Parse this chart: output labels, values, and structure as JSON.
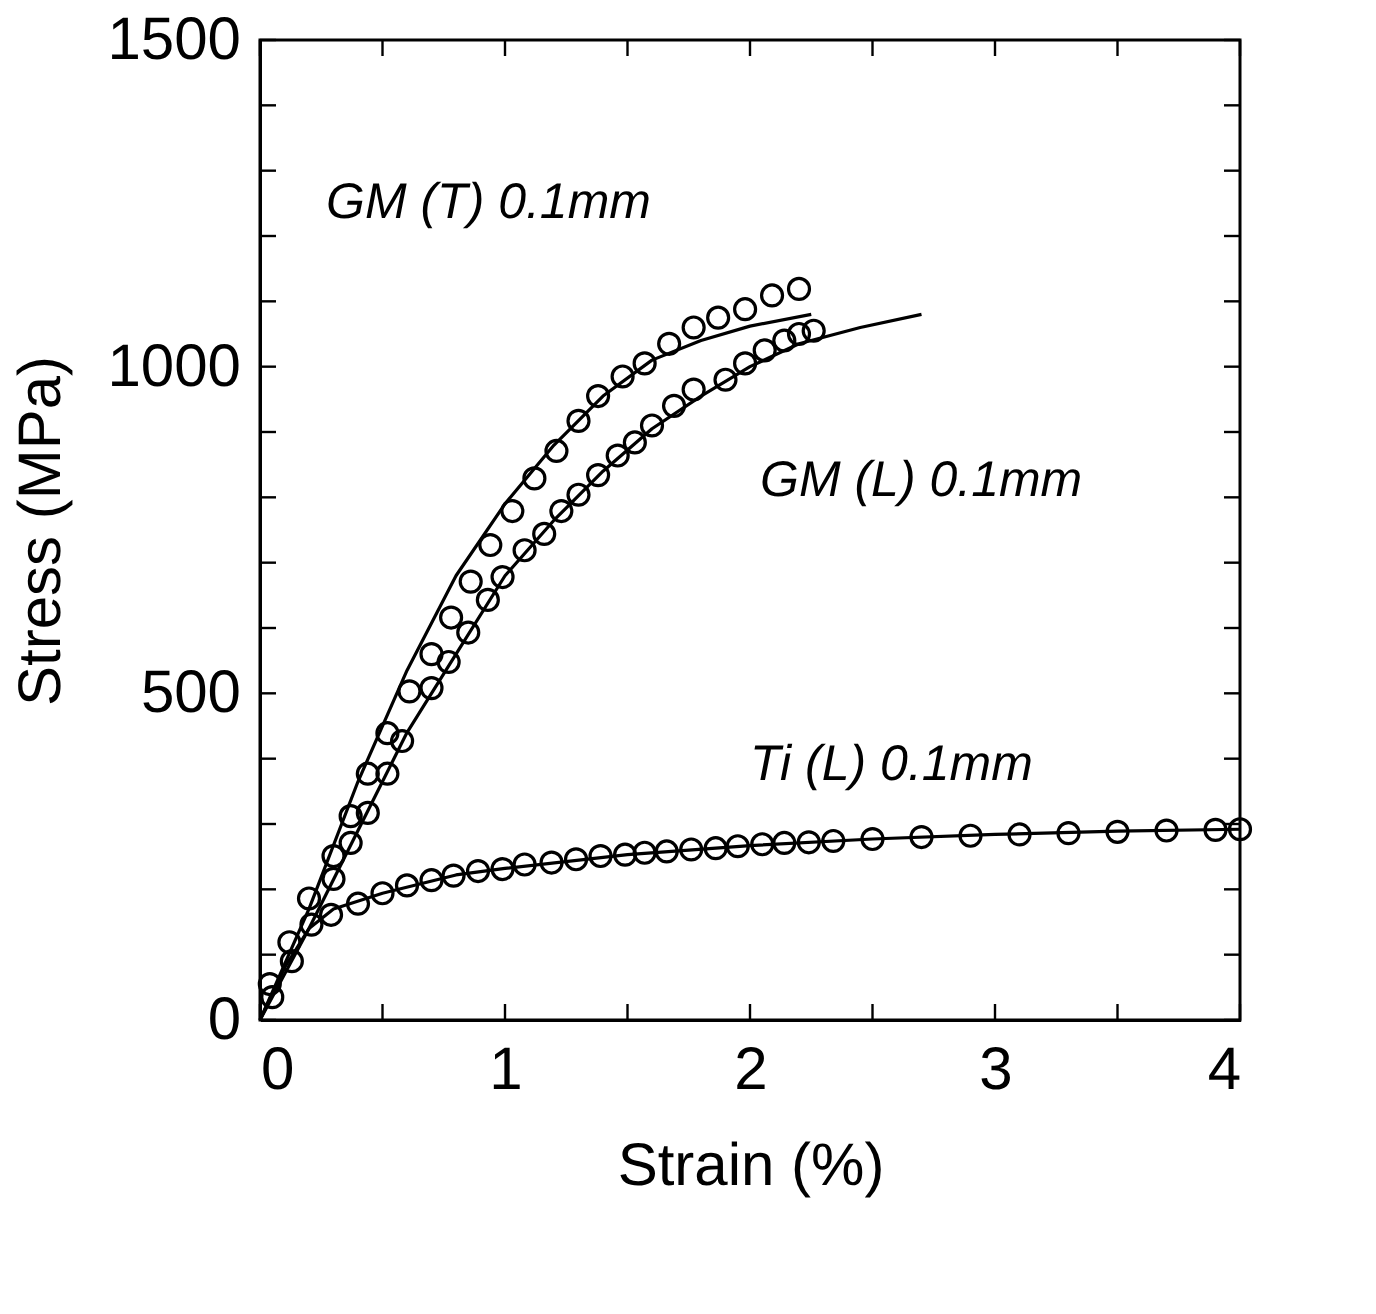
{
  "chart_data": {
    "type": "scatter",
    "xlabel": "Strain (%)",
    "ylabel": "Stress (MPa)",
    "xlim": [
      0,
      4
    ],
    "ylim": [
      0,
      1500
    ],
    "xticks": [
      0,
      {
        "value": 0.5,
        "label": null
      },
      1,
      {
        "value": 1.5,
        "label": null
      },
      2,
      {
        "value": 2.5,
        "label": null
      },
      3,
      {
        "value": 3.5,
        "label": null
      },
      4
    ],
    "yticks": [
      0,
      {
        "value": 100,
        "label": null
      },
      {
        "value": 200,
        "label": null
      },
      {
        "value": 300,
        "label": null
      },
      {
        "value": 400,
        "label": null
      },
      500,
      {
        "value": 600,
        "label": null
      },
      {
        "value": 700,
        "label": null
      },
      {
        "value": 800,
        "label": null
      },
      {
        "value": 900,
        "label": null
      },
      1000,
      {
        "value": 1100,
        "label": null
      },
      {
        "value": 1200,
        "label": null
      },
      {
        "value": 1300,
        "label": null
      },
      {
        "value": 1400,
        "label": null
      },
      1500
    ],
    "grid": false,
    "marker": "circle",
    "series": [
      {
        "color": "#000000",
        "x": [
          0.04,
          0.12,
          0.2,
          0.3,
          0.37,
          0.44,
          0.52,
          0.61,
          0.7,
          0.78,
          0.86,
          0.94,
          1.03,
          1.12,
          1.21,
          1.3,
          1.38,
          1.48,
          1.57,
          1.67,
          1.77,
          1.87,
          1.98,
          2.09,
          2.2
        ],
        "values": [
          55,
          119,
          186,
          251,
          312,
          377,
          439,
          503,
          560,
          616,
          671,
          727,
          779,
          829,
          871,
          917,
          955,
          985,
          1005,
          1035,
          1060,
          1075,
          1088,
          1109,
          1119
        ]
      },
      {
        "color": "#000000",
        "x": [
          0.05,
          0.13,
          0.21,
          0.3,
          0.37,
          0.44,
          0.52,
          0.58,
          0.7,
          0.77,
          0.85,
          0.93,
          0.99,
          1.08,
          1.16,
          1.23,
          1.3,
          1.38,
          1.46,
          1.53,
          1.6,
          1.69,
          1.77,
          1.9,
          1.98,
          2.06,
          2.14,
          2.2,
          2.26
        ],
        "values": [
          35,
          90,
          146,
          216,
          271,
          317,
          377,
          427,
          508,
          548,
          593,
          643,
          678,
          719,
          744,
          779,
          804,
          834,
          864,
          884,
          910,
          940,
          965,
          980,
          1005,
          1025,
          1040,
          1050,
          1055
        ]
      },
      {
        "color": "#000000",
        "x": [
          0.29,
          0.4,
          0.5,
          0.6,
          0.7,
          0.79,
          0.89,
          0.99,
          1.08,
          1.19,
          1.29,
          1.39,
          1.49,
          1.57,
          1.66,
          1.76,
          1.86,
          1.95,
          2.05,
          2.14,
          2.24,
          2.34,
          2.5,
          2.7,
          2.9,
          3.1,
          3.3,
          3.5,
          3.7,
          3.9,
          4.0
        ],
        "values": [
          161,
          178,
          194,
          206,
          214,
          221,
          228,
          231,
          238,
          241,
          246,
          251,
          253,
          256,
          258,
          261,
          263,
          266,
          269,
          271,
          272,
          274,
          277,
          280,
          282,
          284,
          286,
          288,
          290,
          291,
          292
        ]
      },
      {
        "type": "line",
        "color": "#000000",
        "marker": "none",
        "line_style": "solid",
        "x": [
          0,
          0.2,
          0.4,
          0.6,
          0.8,
          1.0,
          1.2,
          1.4,
          1.6,
          1.8,
          2.0,
          2.25
        ],
        "values": [
          0,
          170,
          365,
          535,
          680,
          790,
          880,
          955,
          1010,
          1040,
          1062,
          1080
        ]
      },
      {
        "type": "line",
        "color": "#000000",
        "marker": "none",
        "line_style": "solid",
        "x": [
          0,
          0.2,
          0.4,
          0.6,
          0.8,
          1.0,
          1.2,
          1.4,
          1.6,
          1.8,
          2.0,
          2.2,
          2.45,
          2.7
        ],
        "values": [
          0,
          140,
          290,
          440,
          560,
          680,
          765,
          840,
          905,
          955,
          1000,
          1035,
          1060,
          1080
        ]
      },
      {
        "type": "line",
        "color": "#000000",
        "marker": "none",
        "line_style": "solid",
        "x": [
          0,
          0.1,
          0.2,
          0.3,
          0.5,
          0.8,
          1.0,
          1.5,
          2.0,
          2.5,
          3.0,
          3.5,
          4.0
        ],
        "values": [
          0,
          80,
          140,
          170,
          194,
          222,
          232,
          253,
          267,
          277,
          284,
          289,
          292
        ]
      }
    ],
    "annotations": [
      "GM (T)  0.1mm",
      "GM (L) 0.1mm",
      "Ti (L) 0.1mm"
    ]
  }
}
